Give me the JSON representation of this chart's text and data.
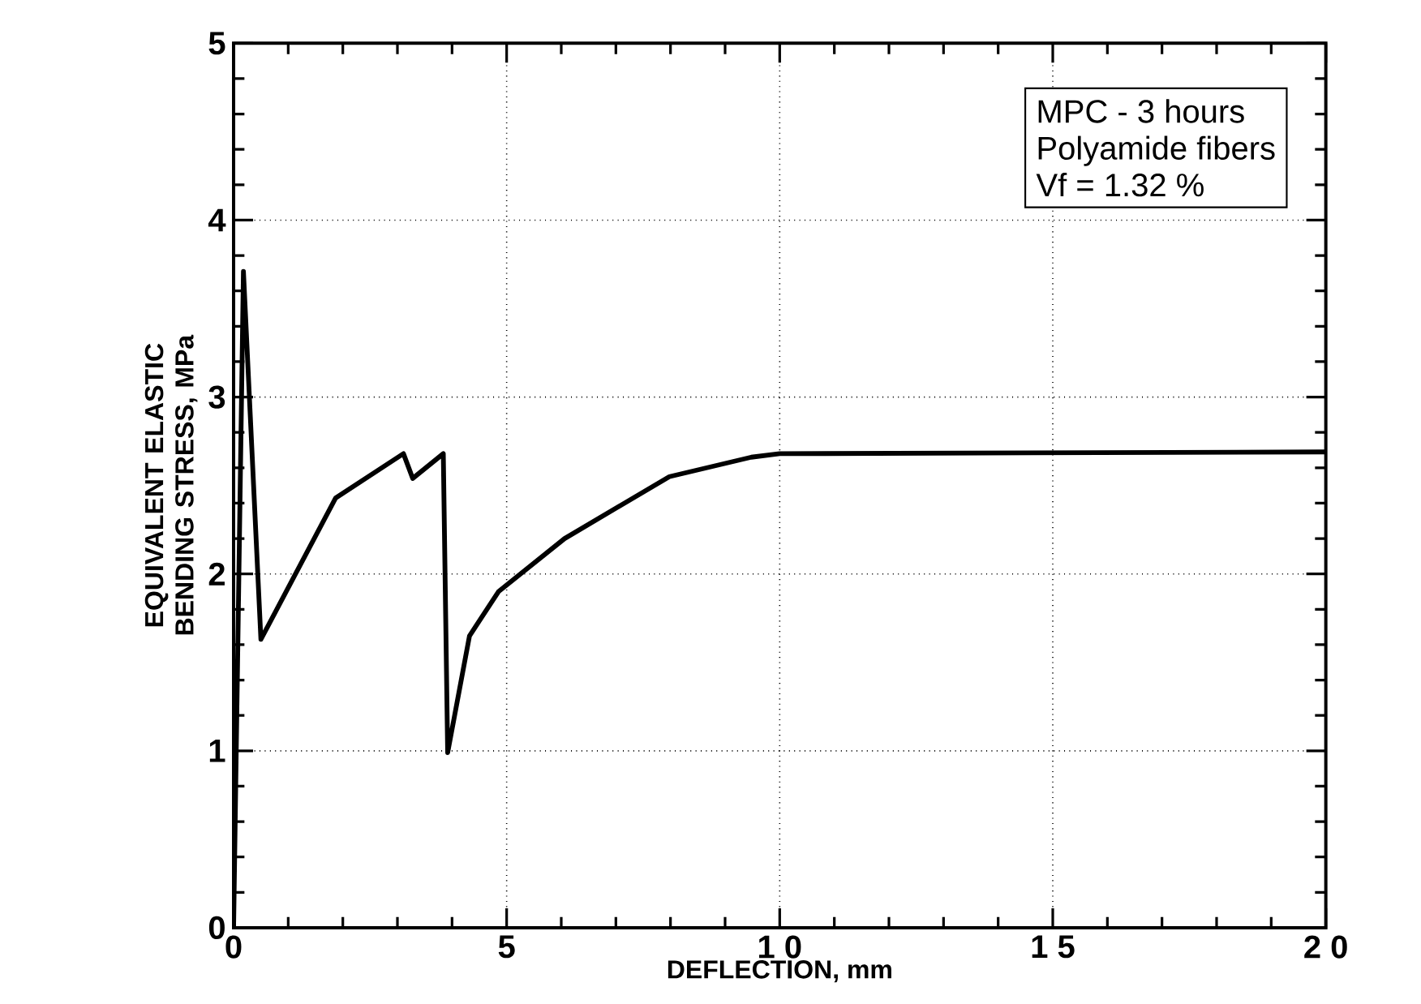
{
  "chart_data": {
    "type": "line",
    "xlabel": "DEFLECTION,    mm",
    "ylabel": "EQUIVALENT ELASTIC BENDING STRESS, MPa",
    "annotations": [
      "MPC - 3 hours",
      "Polyamide fibers",
      "Vf = 1.32 %"
    ],
    "series": [
      {
        "color": "#000000",
        "x": [
          0,
          0.18,
          0.5,
          1.87,
          3.11,
          3.28,
          3.84,
          3.92,
          4.32,
          4.85,
          6.06,
          7.98,
          9.48,
          10,
          20
        ],
        "values": [
          0,
          3.71,
          1.63,
          2.43,
          2.68,
          2.54,
          2.68,
          0.99,
          1.65,
          1.9,
          2.2,
          2.55,
          2.66,
          2.68,
          2.69
        ]
      }
    ],
    "xlim": [
      0,
      20
    ],
    "xticks": [
      0,
      5,
      {
        "value": 10,
        "label": "1 0"
      },
      {
        "value": 15,
        "label": "1 5"
      },
      {
        "value": 20,
        "label": "2 0"
      }
    ],
    "ylim": [
      0,
      5
    ],
    "yticks": [
      0,
      1,
      2,
      3,
      4,
      5
    ],
    "grid": true,
    "marker": "none",
    "line_style": "solid"
  }
}
